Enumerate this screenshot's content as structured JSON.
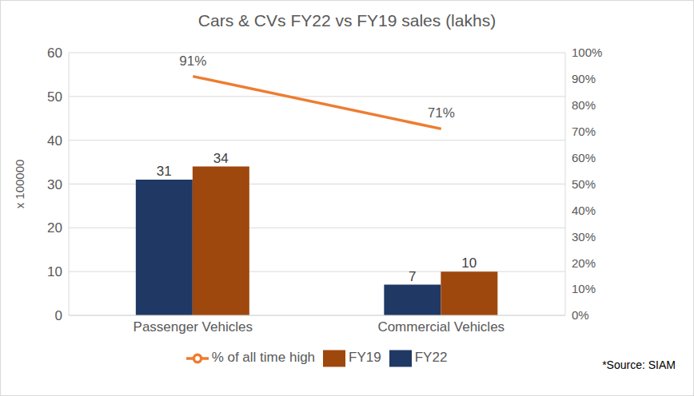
{
  "chart_data": {
    "type": "bar",
    "title": "Cars & CVs FY22 vs FY19 sales (lakhs)",
    "ylabel": "x 100000",
    "categories": [
      "Passenger Vehicles",
      "Commercial Vehicles"
    ],
    "series": [
      {
        "name": "FY22",
        "color": "#203864",
        "type": "bar",
        "values": [
          31,
          7
        ]
      },
      {
        "name": "FY19",
        "color": "#9e480e",
        "type": "bar",
        "values": [
          34,
          10
        ]
      },
      {
        "name": "% of all time high",
        "color": "#ed7d31",
        "type": "line",
        "axis": "y2",
        "values": [
          91,
          71
        ],
        "value_labels": [
          "91%",
          "71%"
        ]
      }
    ],
    "ylim": [
      0,
      60
    ],
    "yticks": [
      0,
      10,
      20,
      30,
      40,
      50,
      60
    ],
    "y2lim": [
      0,
      100
    ],
    "y2ticks": [
      {
        "value": 0,
        "label": "0%"
      },
      {
        "value": 10,
        "label": "10%"
      },
      {
        "value": 20,
        "label": "20%"
      },
      {
        "value": 30,
        "label": "30%"
      },
      {
        "value": 40,
        "label": "40%"
      },
      {
        "value": 50,
        "label": "50%"
      },
      {
        "value": 60,
        "label": "60%"
      },
      {
        "value": 70,
        "label": "70%"
      },
      {
        "value": 80,
        "label": "80%"
      },
      {
        "value": 90,
        "label": "90%"
      },
      {
        "value": 100,
        "label": "100%"
      }
    ],
    "grid": true,
    "legend": "bottom",
    "data_labels": true,
    "annotations": [
      "*Source: SIAM"
    ]
  }
}
